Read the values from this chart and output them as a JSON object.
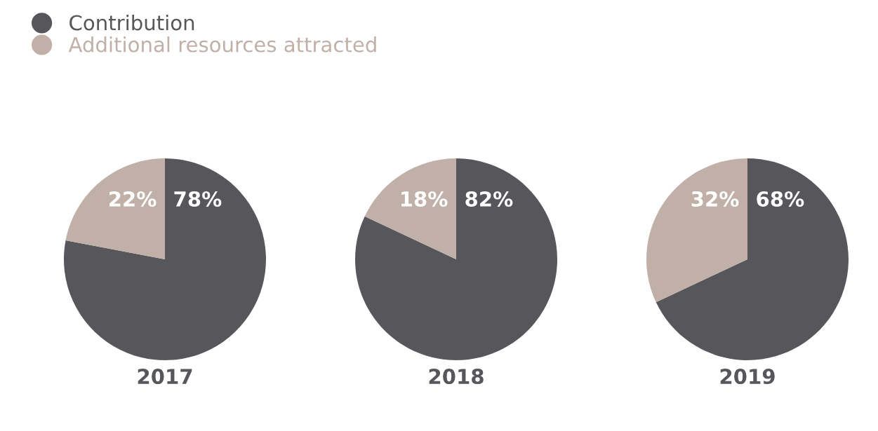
{
  "chart_data": [
    {
      "type": "pie",
      "xlabel": "2017",
      "categories": [
        "Contribution",
        "Additional resources attracted"
      ],
      "values": [
        78,
        22
      ],
      "value_labels": [
        "78%",
        "22%"
      ],
      "colors": [
        "#56565b",
        "#c0b0a7"
      ],
      "legend": "top"
    },
    {
      "type": "pie",
      "xlabel": "2018",
      "categories": [
        null,
        null
      ],
      "values": [
        82,
        18
      ],
      "value_labels": [
        "82%",
        "18%"
      ],
      "colors": [
        "#56565b",
        "#c0b0a7"
      ]
    },
    {
      "type": "pie",
      "xlabel": "2019",
      "categories": [
        null,
        null
      ],
      "values": [
        68,
        32
      ],
      "value_labels": [
        "68%",
        "32%"
      ],
      "colors": [
        "#56565b",
        "#c0b0a7"
      ]
    }
  ]
}
